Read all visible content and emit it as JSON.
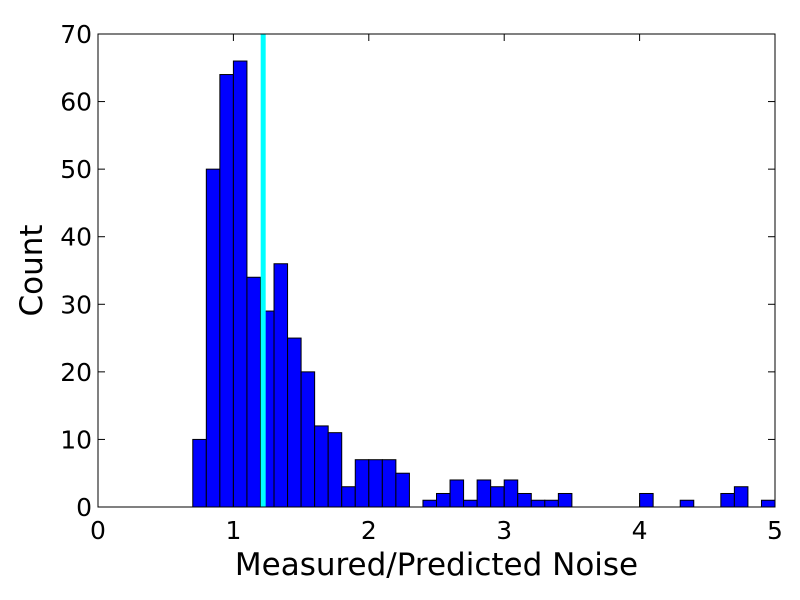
{
  "chart_data": {
    "type": "bar",
    "title": "",
    "xlabel": "Measured/Predicted Noise",
    "ylabel": "Count",
    "xlim": [
      0,
      5
    ],
    "ylim": [
      0,
      70
    ],
    "bin_width": 0.1,
    "bin_starts": [
      0.7,
      0.8,
      0.9,
      1.0,
      1.1,
      1.2,
      1.3,
      1.4,
      1.5,
      1.6,
      1.7,
      1.8,
      1.9,
      2.0,
      2.1,
      2.2,
      2.3,
      2.4,
      2.5,
      2.6,
      2.7,
      2.8,
      2.9,
      3.0,
      3.1,
      3.2,
      3.3,
      3.4,
      3.5,
      3.6,
      3.7,
      3.8,
      3.9,
      4.0,
      4.1,
      4.2,
      4.3,
      4.4,
      4.5,
      4.6,
      4.7,
      4.8,
      4.9
    ],
    "values": [
      10,
      50,
      64,
      66,
      34,
      29,
      36,
      25,
      20,
      12,
      11,
      3,
      7,
      7,
      7,
      5,
      0,
      1,
      2,
      4,
      1,
      4,
      3,
      4,
      2,
      1,
      1,
      2,
      0,
      0,
      0,
      0,
      0,
      2,
      0,
      0,
      1,
      0,
      0,
      2,
      3,
      0,
      1
    ],
    "xticks": [
      0,
      1,
      2,
      3,
      4,
      5
    ],
    "yticks": [
      0,
      10,
      20,
      30,
      40,
      50,
      60,
      70
    ],
    "vline": {
      "x": 1.22,
      "color": "#00ffff"
    },
    "bar_color": "#0000ff",
    "grid": false
  }
}
